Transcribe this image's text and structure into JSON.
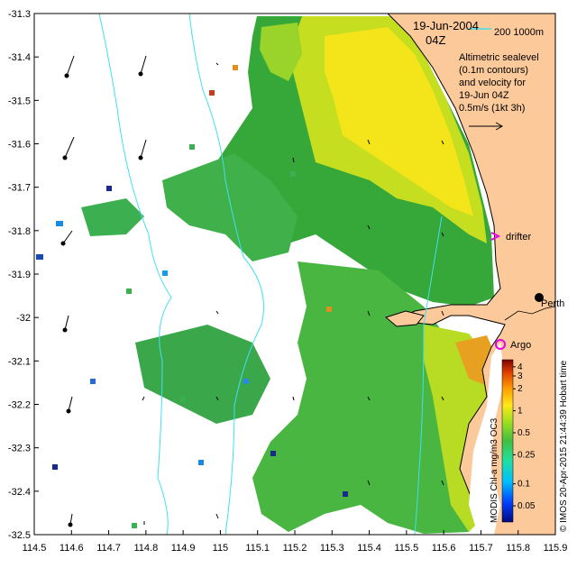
{
  "chart_data": {
    "type": "heatmap",
    "title": "19-Jun-2004",
    "subtitle": "04Z",
    "x_ticks": [
      "114.5",
      "114.6",
      "114.7",
      "114.8",
      "114.9",
      "115",
      "115.1",
      "115.2",
      "115.3",
      "115.4",
      "115.5",
      "115.6",
      "115.7",
      "115.8",
      "115.9"
    ],
    "y_ticks": [
      "-31.3",
      "-31.4",
      "-31.5",
      "-31.6",
      "-31.7",
      "-31.8",
      "-31.9",
      "-32",
      "-32.1",
      "-32.2",
      "-32.3",
      "-32.4",
      "-32.5"
    ],
    "xlim": [
      114.5,
      115.9
    ],
    "ylim": [
      -32.5,
      -31.3
    ],
    "scale_bar": {
      "label": "200   1000m"
    },
    "altimetry_note": [
      "Altimetric sealevel",
      "(0.1m contours)",
      "and velocity for",
      "19-Jun 04Z",
      "0.5m/s (1kt 3h)"
    ],
    "markers": [
      {
        "label": "drifter",
        "symbol": ">",
        "lon": 115.75,
        "lat": -31.82,
        "color": "#e800e8"
      },
      {
        "label": "Argo",
        "symbol": "o",
        "lon": 115.75,
        "lat": -32.07,
        "color": "#e800e8"
      },
      {
        "label": "Perth",
        "symbol": "dot",
        "lon": 115.86,
        "lat": -31.95,
        "color": "#000000"
      }
    ],
    "colorbar": {
      "label": "MODIS Chl-a mg/m3 OC3",
      "scale": "log",
      "ticks": [
        "4",
        "3",
        "2",
        "1",
        "0.5",
        "0.25",
        "0.1",
        "0.05"
      ],
      "tick_values": [
        4,
        3,
        2,
        1,
        0.5,
        0.25,
        0.1,
        0.05
      ],
      "range": [
        0.03,
        5
      ]
    },
    "credit": "© IMOS 20-Apr-2015 21:44:39 Hobart time",
    "colors": {
      "land": "#fcc99b",
      "contour": "#40e0f0",
      "low_chl": "#1a2a8a",
      "mid_chl": "#3cb03c",
      "high_chl": "#ffe818"
    }
  }
}
